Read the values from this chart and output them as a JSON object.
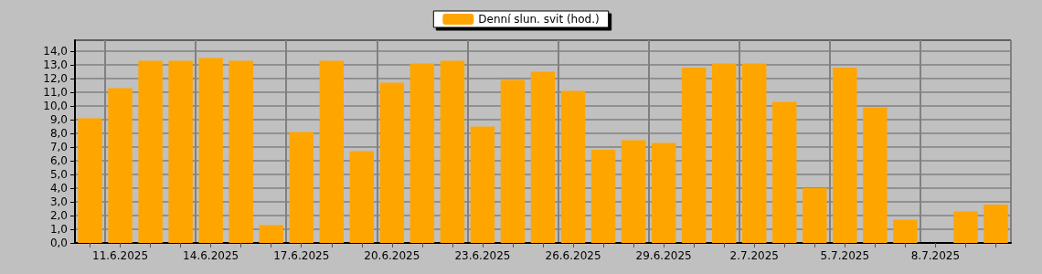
{
  "chart_data": {
    "type": "bar",
    "categories": [
      null,
      "11.6.2025",
      null,
      null,
      "14.6.2025",
      null,
      null,
      "17.6.2025",
      null,
      null,
      "20.6.2025",
      null,
      null,
      "23.6.2025",
      null,
      null,
      "26.6.2025",
      null,
      null,
      "29.6.2025",
      null,
      null,
      "2.7.2025",
      null,
      null,
      "5.7.2025",
      null,
      null,
      "8.7.2025",
      null,
      null
    ],
    "series": [
      {
        "name": "Denní slun. svit (hod.)",
        "color": "#ffa500",
        "values": [
          9.1,
          11.3,
          13.3,
          13.3,
          13.5,
          13.3,
          1.3,
          8.1,
          13.3,
          6.7,
          11.7,
          13.1,
          13.3,
          8.5,
          11.9,
          12.5,
          11.1,
          6.8,
          7.5,
          7.3,
          12.8,
          13.1,
          13.1,
          10.3,
          4.0,
          12.8,
          9.9,
          1.7,
          0,
          2.3,
          2.8
        ]
      }
    ],
    "ylim": [
      0,
      14.8
    ],
    "yticks": [
      {
        "value": 0,
        "label": "0,0"
      },
      {
        "value": 1,
        "label": "1,0"
      },
      {
        "value": 2,
        "label": "2,0"
      },
      {
        "value": 3,
        "label": "3,0"
      },
      {
        "value": 4,
        "label": "4,0"
      },
      {
        "value": 5,
        "label": "5,0"
      },
      {
        "value": 6,
        "label": "6,0"
      },
      {
        "value": 7,
        "label": "7,0"
      },
      {
        "value": 8,
        "label": "8,0"
      },
      {
        "value": 9,
        "label": "9,0"
      },
      {
        "value": 10,
        "label": "10,0"
      },
      {
        "value": 11,
        "label": "11,0"
      },
      {
        "value": 12,
        "label": "12,0"
      },
      {
        "value": 13,
        "label": "13,0"
      },
      {
        "value": 14,
        "label": "14,0"
      }
    ],
    "grid": true,
    "legend": "top"
  }
}
